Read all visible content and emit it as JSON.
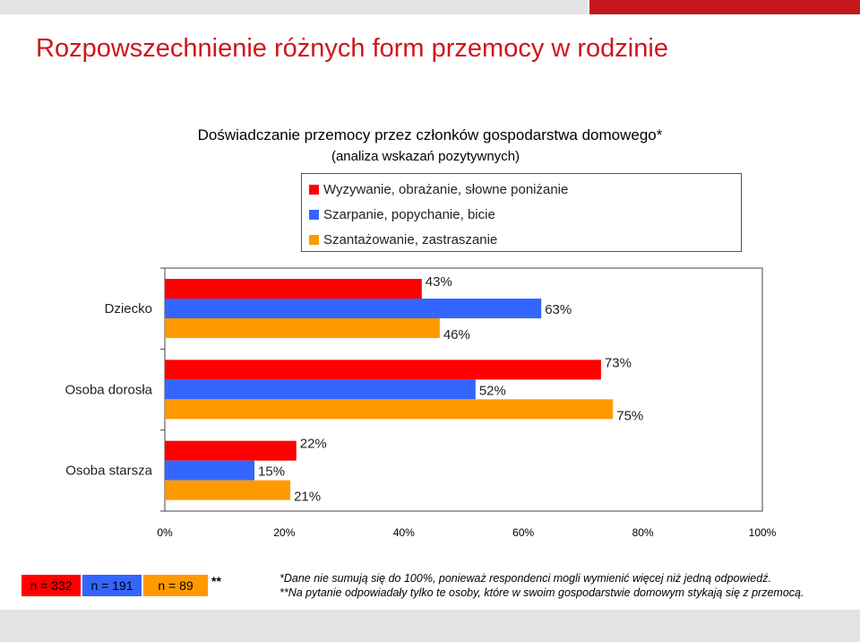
{
  "title": "Rozpowszechnienie różnych form przemocy w rodzinie",
  "subtitle": "Doświadczanie przemocy przez członków gospodarstwa domowego*",
  "subtitle2": "(analiza wskazań pozytywnych)",
  "colors": {
    "red": "#ff0000",
    "blue": "#3366ff",
    "orange": "#ff9900",
    "title_red": "#d0161b"
  },
  "chart_data": {
    "type": "bar",
    "orientation": "horizontal",
    "categories": [
      "Dziecko",
      "Osoba dorosła",
      "Osoba starsza"
    ],
    "series": [
      {
        "name": "Wyzywanie, obrażanie, słowne poniżanie",
        "values": [
          43,
          73,
          22
        ],
        "color": "#ff0000"
      },
      {
        "name": "Szarpanie, popychanie, bicie",
        "values": [
          63,
          52,
          15
        ],
        "color": "#3366ff"
      },
      {
        "name": "Szantażowanie, zastraszanie",
        "values": [
          46,
          75,
          21
        ],
        "color": "#ff9900"
      }
    ],
    "value_labels": [
      [
        "43%",
        "63%",
        "46%"
      ],
      [
        "73%",
        "52%",
        "75%"
      ],
      [
        "22%",
        "15%",
        "21%"
      ]
    ],
    "xlim": [
      0,
      100
    ],
    "xticks": [
      "0%",
      "20%",
      "40%",
      "60%",
      "80%",
      "100%"
    ],
    "legend_position": "top",
    "grid": false
  },
  "sample_sizes": [
    "n = 332",
    "n = 191",
    "n = 89"
  ],
  "stars": "**",
  "notes": [
    "*Dane nie sumują się do 100%, ponieważ respondenci mogli wymienić więcej niż jedną odpowiedź.",
    "**Na pytanie odpowiadały tylko te osoby, które w swoim gospodarstwie domowym stykają się z przemocą."
  ]
}
